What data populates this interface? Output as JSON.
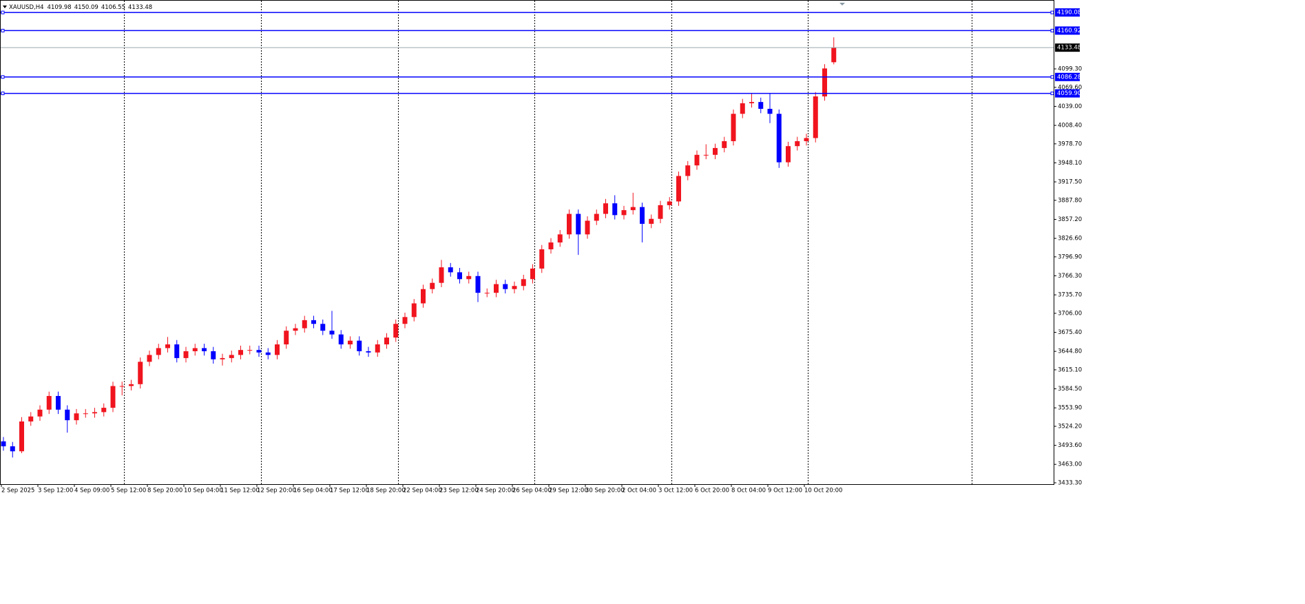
{
  "chart_data": {
    "type": "candlestick",
    "symbol": "XAUUSD,H4",
    "categories": [
      "2 Sep 2025",
      null,
      null,
      null,
      "3 Sep 12:00",
      null,
      null,
      null,
      "4 Sep 09:00",
      null,
      null,
      null,
      "5 Sep 12:00",
      null,
      null,
      null,
      "8 Sep 20:00",
      null,
      null,
      null,
      "10 Sep 04:00",
      null,
      null,
      null,
      "11 Sep 12:00",
      null,
      null,
      null,
      "12 Sep 20:00",
      null,
      null,
      null,
      "16 Sep 04:00",
      null,
      null,
      null,
      "17 Sep 12:00",
      null,
      null,
      null,
      "18 Sep 20:00",
      null,
      null,
      null,
      "22 Sep 04:00",
      null,
      null,
      null,
      "23 Sep 12:00",
      null,
      null,
      null,
      "24 Sep 20:00",
      null,
      null,
      null,
      "26 Sep 04:00",
      null,
      null,
      null,
      "29 Sep 12:00",
      null,
      null,
      null,
      "30 Sep 20:00",
      null,
      null,
      null,
      "2 Oct 04:00",
      null,
      null,
      null,
      "3 Oct 12:00",
      null,
      null,
      null,
      "6 Oct 20:00",
      null,
      null,
      null,
      "8 Oct 04:00",
      null,
      null,
      null,
      "9 Oct 12:00",
      null,
      null,
      null,
      "10 Oct 20:00",
      null,
      null,
      null
    ],
    "open": [
      3500,
      3492,
      3484,
      3532,
      3540,
      3551,
      3573,
      3551,
      3534,
      3545,
      3545,
      3547,
      3554,
      3589,
      3589,
      3592,
      3628,
      3639,
      3650,
      3656,
      3634,
      3645,
      3650,
      3645,
      3632,
      3634,
      3639,
      3647,
      3647,
      3643,
      3639,
      3656,
      3678,
      3682,
      3695,
      3689,
      3678,
      3672,
      3656,
      3662,
      3645,
      3643,
      3656,
      3667,
      3689,
      3700,
      3722,
      3745,
      3755,
      3780,
      3772,
      3761,
      3766,
      3739,
      3739,
      3753,
      3745,
      3750,
      3761,
      3778,
      3809,
      3820,
      3833,
      3866,
      3833,
      3855,
      3866,
      3883,
      3864,
      3872,
      3877,
      3850,
      3858,
      3880,
      3886,
      3927,
      3944,
      3961,
      3961,
      3972,
      3983,
      4027,
      4044,
      4046,
      4035,
      4027,
      3949,
      3975,
      3983,
      3988,
      4055,
      4109.98
    ],
    "high": [
      3507,
      3499,
      3539,
      3547,
      3558,
      3580,
      3580,
      3558,
      3552,
      3552,
      3554,
      3561,
      3596,
      3596,
      3599,
      3635,
      3646,
      3657,
      3668,
      3663,
      3652,
      3657,
      3657,
      3652,
      3641,
      3646,
      3654,
      3654,
      3654,
      3650,
      3663,
      3685,
      3689,
      3702,
      3702,
      3696,
      3710,
      3679,
      3669,
      3669,
      3652,
      3663,
      3674,
      3696,
      3707,
      3729,
      3752,
      3762,
      3792,
      3787,
      3779,
      3773,
      3773,
      3746,
      3760,
      3760,
      3757,
      3768,
      3785,
      3816,
      3827,
      3840,
      3873,
      3873,
      3862,
      3873,
      3890,
      3896,
      3879,
      3900,
      3884,
      3865,
      3887,
      3893,
      3934,
      3951,
      3968,
      3978,
      3979,
      3990,
      4034,
      4051,
      4060,
      4053,
      4060,
      4034,
      3982,
      3990,
      3995,
      4062,
      4107,
      4150.09
    ],
    "low": [
      3485,
      3474,
      3481,
      3525,
      3533,
      3544,
      3544,
      3514,
      3527,
      3538,
      3538,
      3540,
      3547,
      3574,
      3582,
      3585,
      3621,
      3632,
      3643,
      3627,
      3627,
      3638,
      3638,
      3625,
      3622,
      3627,
      3632,
      3640,
      3636,
      3632,
      3632,
      3649,
      3671,
      3675,
      3682,
      3671,
      3665,
      3649,
      3649,
      3638,
      3636,
      3636,
      3649,
      3660,
      3682,
      3693,
      3715,
      3738,
      3748,
      3765,
      3754,
      3754,
      3724,
      3732,
      3732,
      3738,
      3738,
      3743,
      3754,
      3771,
      3802,
      3813,
      3826,
      3800,
      3826,
      3848,
      3859,
      3857,
      3857,
      3865,
      3820,
      3843,
      3851,
      3873,
      3879,
      3920,
      3937,
      3954,
      3954,
      3965,
      3976,
      4020,
      4037,
      4028,
      4012,
      3940,
      3942,
      3968,
      3976,
      3981,
      4048,
      4106.55
    ],
    "close": [
      3492,
      3484,
      3532,
      3540,
      3551,
      3573,
      3551,
      3534,
      3545,
      3545,
      3547,
      3554,
      3589,
      3589,
      3592,
      3628,
      3639,
      3650,
      3656,
      3634,
      3645,
      3650,
      3645,
      3632,
      3634,
      3639,
      3647,
      3647,
      3643,
      3639,
      3656,
      3678,
      3682,
      3695,
      3689,
      3678,
      3672,
      3656,
      3662,
      3645,
      3643,
      3656,
      3667,
      3689,
      3700,
      3722,
      3745,
      3755,
      3780,
      3772,
      3761,
      3766,
      3739,
      3739,
      3753,
      3745,
      3750,
      3761,
      3778,
      3809,
      3820,
      3833,
      3866,
      3833,
      3855,
      3866,
      3883,
      3864,
      3872,
      3877,
      3850,
      3858,
      3880,
      3886,
      3927,
      3944,
      3961,
      3961,
      3972,
      3983,
      4027,
      4044,
      4046,
      4035,
      4027,
      3949,
      3975,
      3983,
      3988,
      4055,
      4100,
      4133.48
    ],
    "up_color": "#f0141e",
    "down_color": "#0000ff",
    "current_color": "#9aa6ad",
    "levels": {
      "values": [
        4190.08,
        4160.92,
        4086.28,
        4059.9
      ],
      "value_labels": [
        "4190.08",
        "4160.92",
        "4086.28",
        "4059.90"
      ],
      "color": "#0000ff"
    },
    "ylim": [
      3431.1,
      4205.7
    ],
    "yticks": [
      {
        "value": 3433.3,
        "label": "3433.30"
      },
      {
        "value": 3463,
        "label": "3463.00"
      },
      {
        "value": 3493.6,
        "label": "3493.60"
      },
      {
        "value": 3524.2,
        "label": "3524.20"
      },
      {
        "value": 3553.9,
        "label": "3553.90"
      },
      {
        "value": 3584.5,
        "label": "3584.50"
      },
      {
        "value": 3615.1,
        "label": "3615.10"
      },
      {
        "value": 3644.8,
        "label": "3644.80"
      },
      {
        "value": 3675.4,
        "label": "3675.40"
      },
      {
        "value": 3706,
        "label": "3706.00"
      },
      {
        "value": 3735.7,
        "label": "3735.70"
      },
      {
        "value": 3766.3,
        "label": "3766.30"
      },
      {
        "value": 3796.9,
        "label": "3796.90"
      },
      {
        "value": 3826.6,
        "label": "3826.60"
      },
      {
        "value": 3857.2,
        "label": "3857.20"
      },
      {
        "value": 3887.8,
        "label": "3887.80"
      },
      {
        "value": 3917.5,
        "label": "3917.50"
      },
      {
        "value": 3948.1,
        "label": "3948.10"
      },
      {
        "value": 3978.7,
        "label": "3978.70"
      },
      {
        "value": 4008.4,
        "label": "4008.40"
      },
      {
        "value": 4039,
        "label": "4039.00"
      },
      {
        "value": 4069.6,
        "label": "4069.60"
      },
      {
        "value": 4099.3,
        "label": "4099.30"
      }
    ]
  }
}
